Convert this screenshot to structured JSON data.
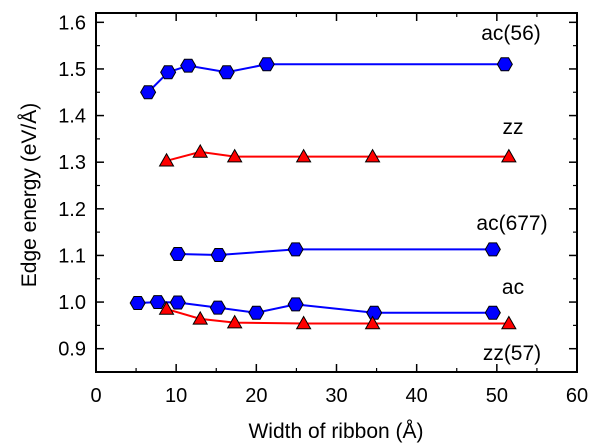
{
  "chart_data": {
    "type": "scatter",
    "xlabel": "Width of ribbon (Å)",
    "ylabel": "Edge energy (eV/Å)",
    "xlim": [
      0,
      60
    ],
    "ylim": [
      0.85,
      1.62
    ],
    "xticks": [
      0,
      10,
      20,
      30,
      40,
      50,
      60
    ],
    "yticks": [
      0.9,
      1.0,
      1.1,
      1.2,
      1.3,
      1.4,
      1.5,
      1.6
    ],
    "xtick_labels": [
      "0",
      "10",
      "20",
      "30",
      "40",
      "50",
      "60"
    ],
    "ytick_labels": [
      "0.9",
      "1.0",
      "1.1",
      "1.2",
      "1.3",
      "1.4",
      "1.5",
      "1.6"
    ],
    "grid": false,
    "series": [
      {
        "name": "ac(56)",
        "color": "#0000ff",
        "marker": "hexagon",
        "x": [
          6.5,
          9.0,
          11.5,
          16.3,
          21.3,
          51.0
        ],
        "y": [
          1.45,
          1.493,
          1.507,
          1.493,
          1.51,
          1.51
        ]
      },
      {
        "name": "zz",
        "color": "#ff0000",
        "marker": "triangle",
        "x": [
          8.8,
          13.0,
          17.3,
          25.9,
          34.5,
          51.5
        ],
        "y": [
          1.303,
          1.322,
          1.312,
          1.312,
          1.312,
          1.312
        ]
      },
      {
        "name": "ac(677)",
        "color": "#0000ff",
        "marker": "hexagon",
        "x": [
          10.2,
          15.3,
          24.9,
          49.5
        ],
        "y": [
          1.103,
          1.101,
          1.113,
          1.113
        ]
      },
      {
        "name": "ac",
        "color": "#0000ff",
        "marker": "hexagon",
        "x": [
          5.2,
          7.7,
          10.2,
          15.2,
          20.0,
          24.9,
          34.7,
          49.5
        ],
        "y": [
          0.998,
          1.0,
          0.999,
          0.988,
          0.977,
          0.995,
          0.977,
          0.977
        ]
      },
      {
        "name": "zz(57)",
        "color": "#ff0000",
        "marker": "triangle",
        "x": [
          8.8,
          13.0,
          17.3,
          25.9,
          34.5,
          51.5
        ],
        "y": [
          0.985,
          0.964,
          0.956,
          0.954,
          0.954,
          0.954
        ]
      }
    ]
  },
  "marker_colors": {
    "hexagon_fill": "#0000ff",
    "triangle_fill": "#ff0000",
    "marker_stroke": "#000000"
  }
}
